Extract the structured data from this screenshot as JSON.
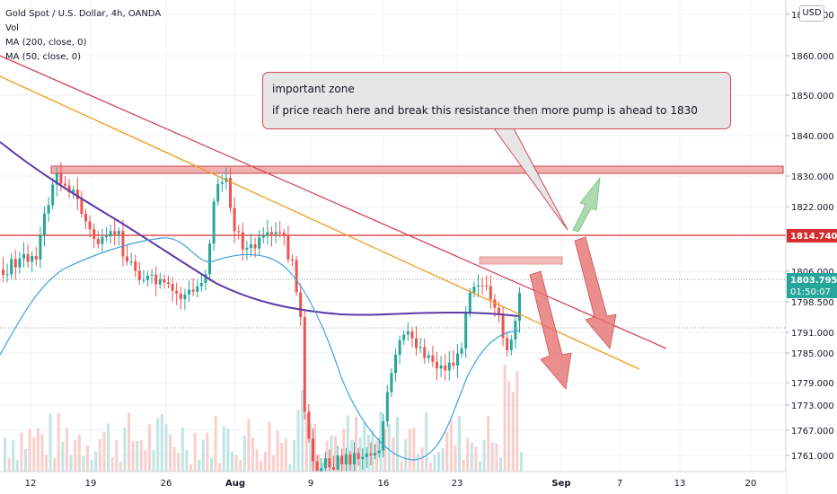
{
  "legend": {
    "symbol": "Gold Spot / U.S. Dollar, 4h, OANDA",
    "vol": "Vol",
    "ma200": "MA (200, close, 0)",
    "ma50": "MA (50, close, 0)"
  },
  "currency_badge": "USD",
  "annotation": {
    "line1": "important zone",
    "line2": "if price reach here and break this resistance then more pump is ahead to 1830"
  },
  "chart_data": {
    "type": "candlestick",
    "price_axis_ticks": [
      "1868.000",
      "1860.000",
      "1850.000",
      "1840.000",
      "1830.000",
      "1822.000",
      "1806.000",
      "1798.500",
      "1791.000",
      "1785.000",
      "1779.000",
      "1773.000",
      "1767.000",
      "1761.000"
    ],
    "time_axis_ticks": [
      "12",
      "19",
      "26",
      "Aug",
      "9",
      "16",
      "23",
      "Sep",
      "7",
      "13",
      "20"
    ],
    "current_price": "1803.795",
    "countdown": "01:50:07",
    "resistance_label": "1814.740",
    "resistance_level": 1814.74,
    "resistance_zone": [
      1830.0,
      1833.0
    ],
    "small_zone": [
      1806.5,
      1808.5
    ],
    "trendline_red": {
      "from": [
        0,
        1864
      ],
      "to": [
        742,
        1788
      ]
    },
    "trendline_orange": {
      "from": [
        0,
        1853
      ],
      "to": [
        712,
        1782
      ]
    },
    "colors": {
      "up": "#26a69a",
      "down": "#ef5350",
      "ma200": "#5b3aa8",
      "ma50": "#3ea2dc",
      "resistance": "#d32f2f",
      "trend_red": "#d2485a",
      "trend_orange": "#f19a1c",
      "zone_fill": "#f0a8a8",
      "zone_stroke": "#c2333f",
      "arrow_red": "#e57373",
      "arrow_green": "#a5d6a7"
    }
  }
}
